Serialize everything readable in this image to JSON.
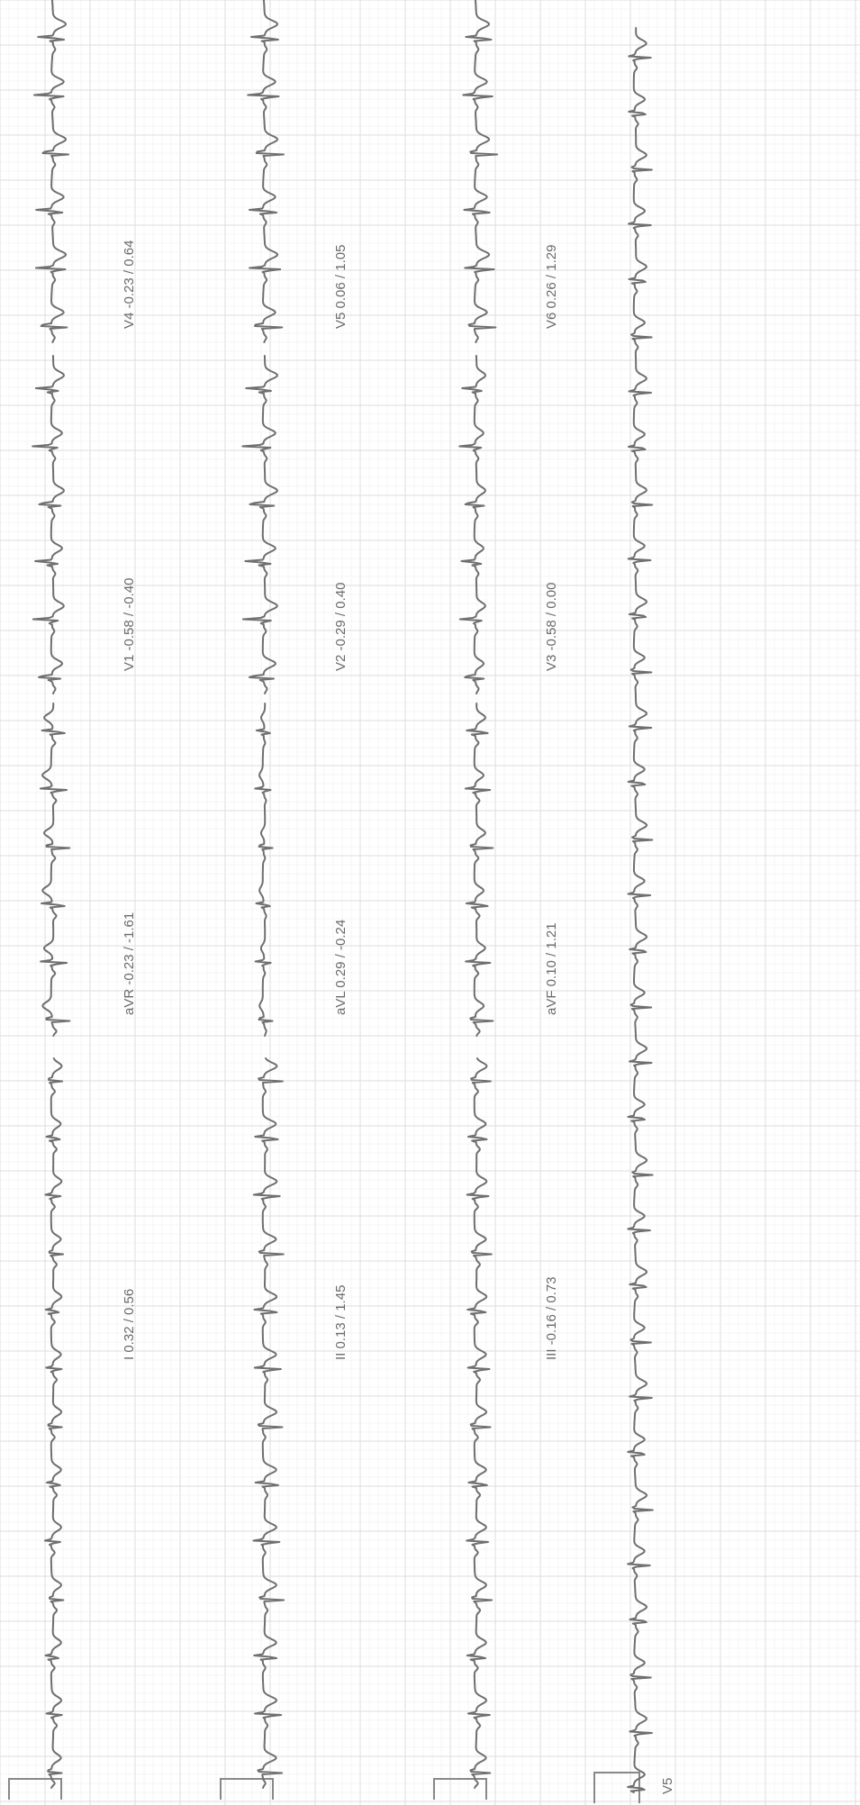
{
  "leads": [
    {
      "id": "I",
      "name": "I",
      "value": "0.32 / 0.56"
    },
    {
      "id": "II",
      "name": "II",
      "value": "0.13 / 1.45"
    },
    {
      "id": "III",
      "name": "III",
      "value": "-0.16 / 0.73"
    },
    {
      "id": "aVR",
      "name": "aVR",
      "value": "-0.23 / -1.61"
    },
    {
      "id": "aVL",
      "name": "aVL",
      "value": "0.29 / -0.24"
    },
    {
      "id": "aVF",
      "name": "aVF",
      "value": "0.10 / 1.21"
    },
    {
      "id": "V1",
      "name": "V1",
      "value": "-0.58 / -0.40"
    },
    {
      "id": "V2",
      "name": "V2",
      "value": "-0.29 / 0.40"
    },
    {
      "id": "V3",
      "name": "V3",
      "value": "-0.58 / 0.00"
    },
    {
      "id": "V4",
      "name": "V4",
      "value": "-0.23 / 0.64"
    },
    {
      "id": "V5",
      "name": "V5",
      "value": "0.06 / 1.05"
    },
    {
      "id": "V6",
      "name": "V6",
      "value": "0.26 / 1.29"
    }
  ],
  "rhythm_strip": {
    "name": "V5"
  },
  "colors": {
    "trace": "#6f6f6f",
    "grid": "#e6e6e6",
    "paper": "#ffffff"
  }
}
